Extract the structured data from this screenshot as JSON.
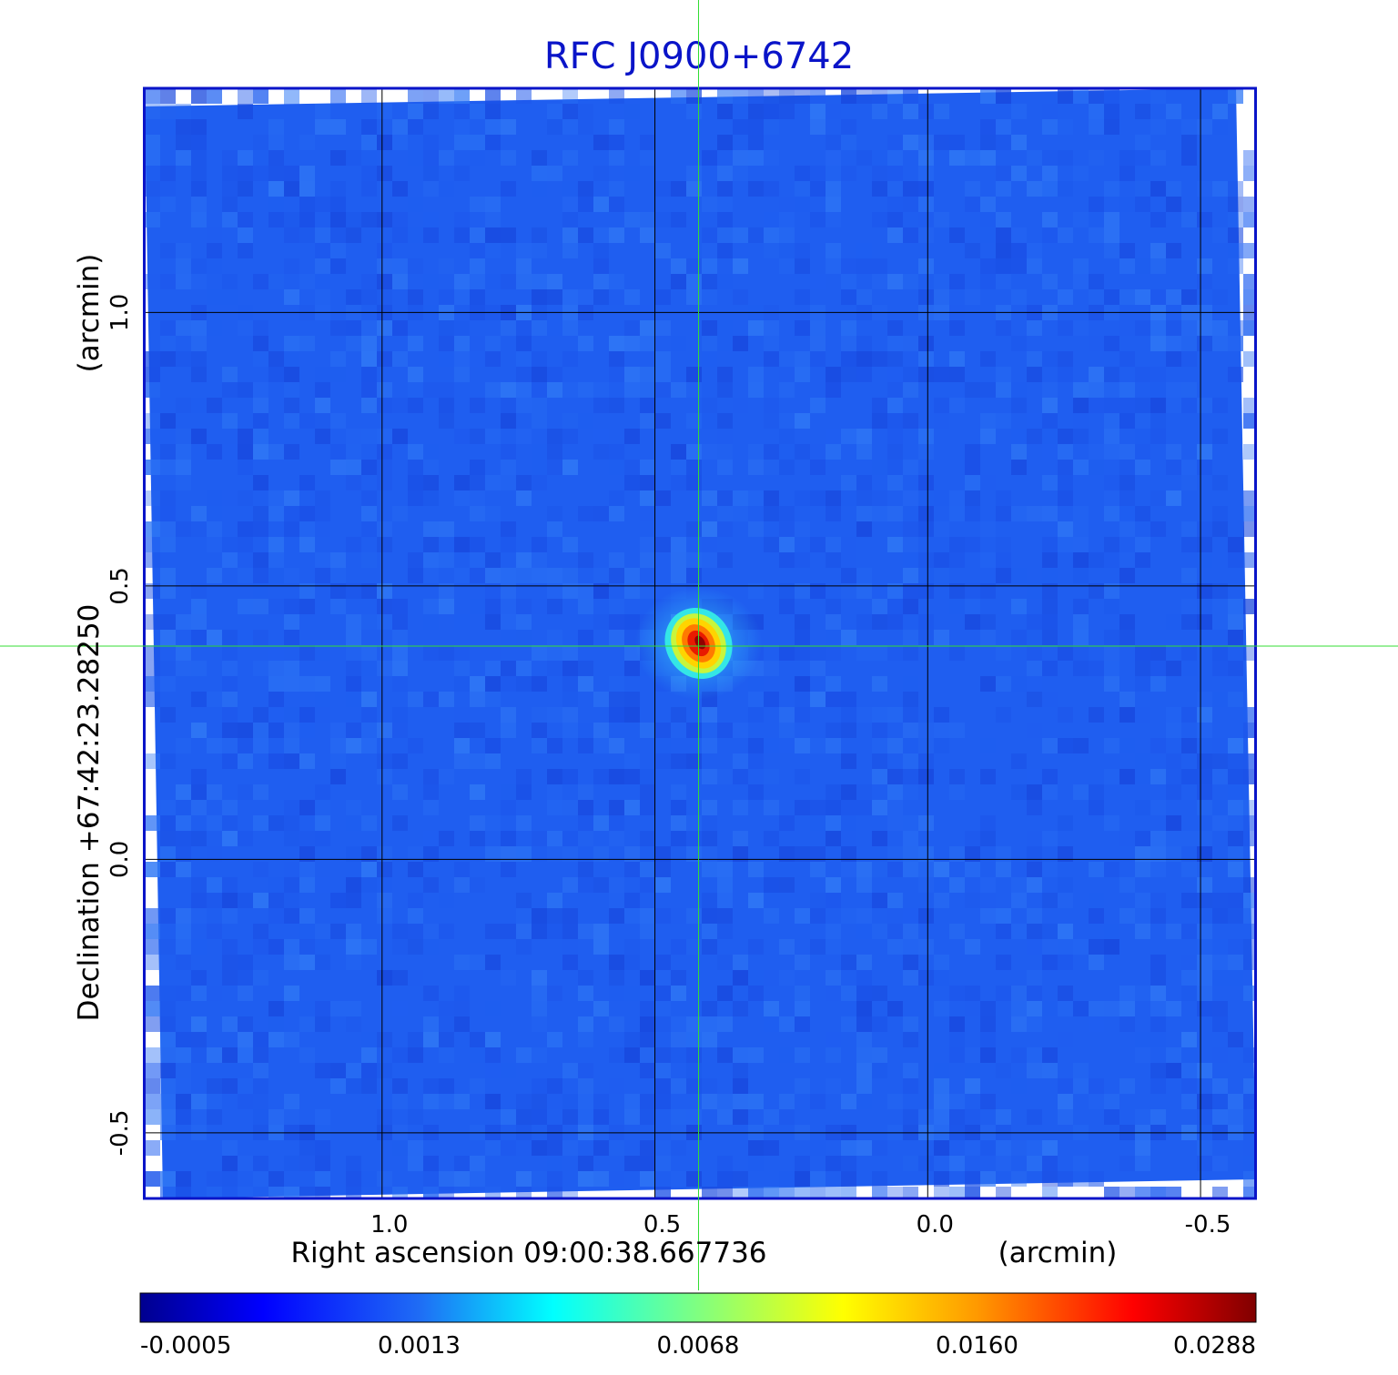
{
  "chart_data": {
    "type": "heatmap",
    "title": "RFC J0900+6742",
    "xlabel": "Right ascension  09:00:38.667736",
    "xunit": "(arcmin)",
    "ylabel": "Declination  +67:42:23.28250",
    "yunit": "(arcmin)",
    "x_ticks": [
      {
        "value": 1.0,
        "label": "1.0"
      },
      {
        "value": 0.5,
        "label": "0.5"
      },
      {
        "value": 0.0,
        "label": "0.0"
      },
      {
        "value": -0.5,
        "label": "-0.5"
      }
    ],
    "y_ticks": [
      {
        "value": 1.0,
        "label": "1.0"
      },
      {
        "value": 0.5,
        "label": "0.5"
      },
      {
        "value": 0.0,
        "label": "0.0"
      },
      {
        "value": -0.5,
        "label": "-0.5"
      }
    ],
    "xlim": [
      1.435,
      -0.6
    ],
    "ylim": [
      -0.62,
      1.41
    ],
    "grid": true,
    "crosshair": {
      "x": 0.42,
      "y": 0.39
    },
    "source_peak": {
      "x": 0.42,
      "y": 0.395,
      "value": 0.0288
    },
    "colorbar": {
      "colormap": "jet",
      "ticks": [
        {
          "value": -0.0005,
          "label": "-0.0005"
        },
        {
          "value": 0.0013,
          "label": "0.0013"
        },
        {
          "value": 0.0068,
          "label": "0.0068"
        },
        {
          "value": 0.016,
          "label": "0.0160"
        },
        {
          "value": 0.0288,
          "label": "0.0288"
        }
      ]
    },
    "colors": {
      "frame": "#0a14c8",
      "background_noise": "#1f5ef0",
      "grid": "#000000",
      "crosshair": "#33dd33"
    }
  }
}
